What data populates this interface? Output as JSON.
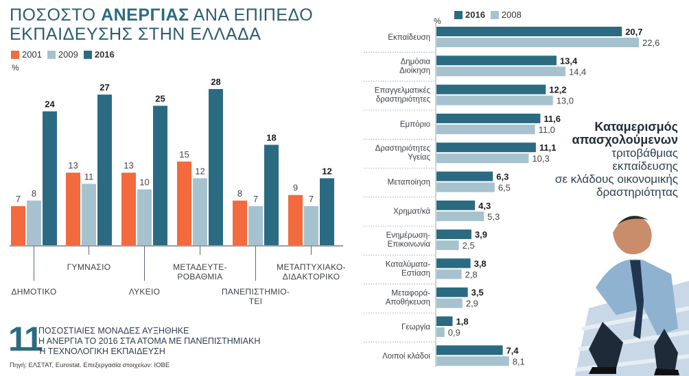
{
  "left_title": {
    "part1": "ΠΟΣΟΣΤΟ ",
    "bold": "ΑΝΕΡΓΙΑΣ",
    "part2": " ΑΝΑ ΕΠΙΠΕΔΟ",
    "line2": "ΕΚΠΑΙΔΕΥΣΗΣ ΣΤΗΝ ΕΛΛΑΔΑ"
  },
  "left_legend": [
    "2001",
    "2009",
    "2016"
  ],
  "left_unit": "%",
  "right_legend": [
    "2016",
    "2008"
  ],
  "right_unit": "%",
  "colors": {
    "y2001": "#f26a3d",
    "y2009": "#a7c2cf",
    "y2016": "#2b6b82",
    "y2008": "#a7c2cf",
    "title": "#2b6b82"
  },
  "chart_data": [
    {
      "type": "bar",
      "unit": "%",
      "categories": [
        [
          "ΔΗΜΟΤΙΚΟ"
        ],
        [
          "ΓΥΜΝΑΣΙΟ"
        ],
        [
          "ΛΥΚΕΙΟ"
        ],
        [
          "ΜΕΤΑΔΕΥΤΕ-",
          "ΡΟΒΑΘΜΙΑ"
        ],
        [
          "ΠΑΝΕΠΙΣΤΗΜΙΟ-",
          "ΤΕΙ"
        ],
        [
          "ΜΕΤΑΠΤΥΧΙΑΚΟ-",
          "ΔΙΔΑΚΤΟΡΙΚΟ"
        ]
      ],
      "series": [
        {
          "name": "2001",
          "values": [
            7,
            13,
            13,
            15,
            8,
            9
          ]
        },
        {
          "name": "2009",
          "values": [
            8,
            11,
            10,
            12,
            7,
            7
          ]
        },
        {
          "name": "2016",
          "values": [
            24,
            27,
            25,
            28,
            18,
            12
          ]
        }
      ]
    },
    {
      "type": "bar",
      "orientation": "horizontal",
      "unit": "%",
      "categories": [
        [
          "Εκπαίδευση"
        ],
        [
          "Δημόσια",
          "Διοίκηση"
        ],
        [
          "Επαγγελματικές",
          "δραστηριότητες"
        ],
        [
          "Εμπόριο"
        ],
        [
          "Δραστηριότητες",
          "Υγείας"
        ],
        [
          "Μεταποίηση"
        ],
        [
          "Χρηματ/κά"
        ],
        [
          "Ενημέρωση-",
          "Επικοινωνία"
        ],
        [
          "Καταλύματα-",
          "Εστίαση"
        ],
        [
          "Μεταφορά-",
          "Αποθήκευση"
        ],
        [
          "Γεωργία"
        ],
        [
          "Λοιποί κλάδοι"
        ]
      ],
      "series": [
        {
          "name": "2016",
          "values": [
            20.7,
            13.4,
            12.2,
            11.6,
            11.1,
            6.3,
            4.3,
            3.9,
            3.8,
            3.5,
            1.8,
            7.4
          ]
        },
        {
          "name": "2008",
          "values": [
            22.6,
            14.4,
            13.0,
            11.0,
            10.3,
            6.5,
            5.3,
            2.5,
            2.8,
            2.9,
            0.9,
            8.1
          ]
        }
      ]
    }
  ],
  "side_title": {
    "line1": "Καταμερισμός",
    "line2": "απασχολούμενων",
    "line3": "τριτοβάθμιας",
    "line4": "εκπαίδευσης",
    "line5": "σε κλάδους οικονομικής",
    "line6": "δραστηριότητας"
  },
  "note": {
    "number": "11",
    "line1": "ΠΟΣΟΣΤΙΑΙΕΣ ΜΟΝΑΔΕΣ ΑΥΞΗΘΗΚΕ",
    "line2": "Η ΑΝΕΡΓΙΑ ΤΟ 2016 ΣΤΑ ΑΤΟΜΑ ΜΕ ΠΑΝΕΠΙΣΤΗΜΙΑΚΗ",
    "line3": "Ή ΤΕΧΝΟΛΟΓΙΚΗ ΕΚΠΑΙΔΕΥΣΗ"
  },
  "source": "Πηγή: ΕΛΣΤΑΤ, Eurostat. Επεξεργασία στοιχείων: ΙΟΒΕ"
}
